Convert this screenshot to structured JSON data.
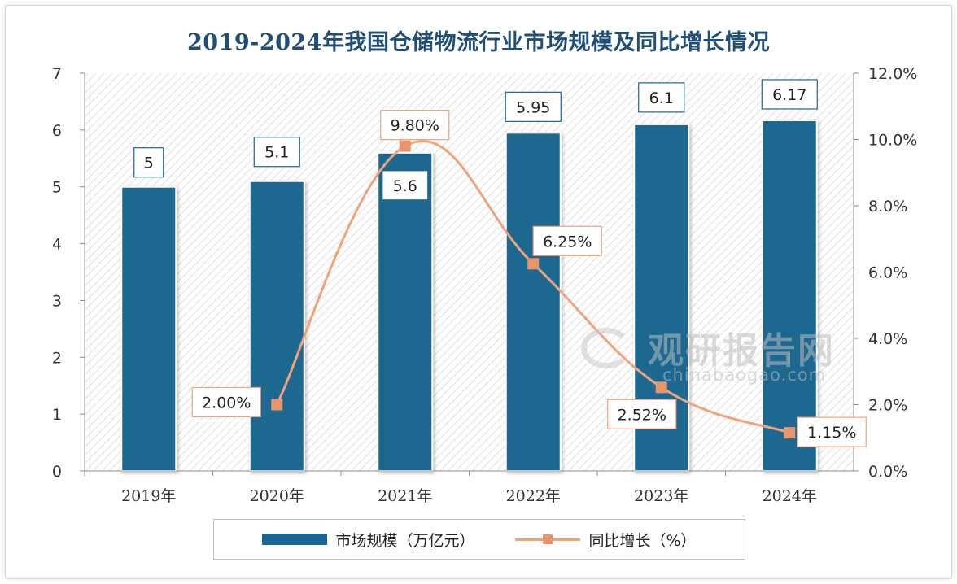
{
  "chart_data": {
    "type": "bar",
    "title": "2019-2024年我国仓储物流行业市场规模及同比增长情况",
    "categories": [
      "2019年",
      "2020年",
      "2021年",
      "2022年",
      "2023年",
      "2024年"
    ],
    "series": [
      {
        "name": "市场规模（万亿元）",
        "type": "bar",
        "axis": "left",
        "values": [
          5,
          5.1,
          5.6,
          5.95,
          6.1,
          6.17
        ],
        "labels": [
          "5",
          "5.1",
          "5.6",
          "5.95",
          "6.1",
          "6.17"
        ],
        "color": "#1a6790"
      },
      {
        "name": "同比增长（%）",
        "type": "line",
        "axis": "right",
        "values": [
          null,
          2.0,
          9.8,
          6.25,
          2.52,
          1.15
        ],
        "labels": [
          "",
          "2.00%",
          "9.80%",
          "6.25%",
          "2.52%",
          "1.15%"
        ],
        "color": "#f0a47c"
      }
    ],
    "ylim_left": [
      0,
      7
    ],
    "yticks_left": [
      "0",
      "1",
      "2",
      "3",
      "4",
      "5",
      "6",
      "7"
    ],
    "ylim_right": [
      0,
      12
    ],
    "yticks_right": [
      "0.0%",
      "2.0%",
      "4.0%",
      "6.0%",
      "8.0%",
      "10.0%",
      "12.0%"
    ],
    "grid": false,
    "legend_position": "bottom"
  },
  "watermark": {
    "name_cn": "观研报告网",
    "url": "chinabaogao.com"
  }
}
